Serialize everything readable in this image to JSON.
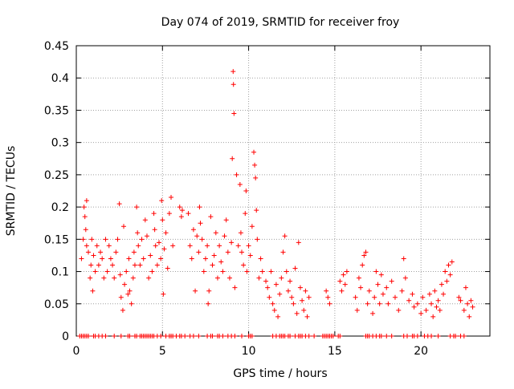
{
  "chart_data": {
    "type": "scatter",
    "title": "Day 074 of 2019, SRMTID for receiver froy",
    "xlabel": "GPS time / hours",
    "ylabel": "SRMTID / TECUs",
    "xlim": [
      0,
      24
    ],
    "ylim": [
      0,
      0.45
    ],
    "x_ticks": [
      0,
      5,
      10,
      15,
      20
    ],
    "x_tick_labels": [
      "0",
      "5",
      "10",
      "15",
      "20"
    ],
    "y_ticks": [
      0,
      0.05,
      0.1,
      0.15,
      0.2,
      0.25,
      0.3,
      0.35,
      0.4,
      0.45
    ],
    "y_tick_labels": [
      "0",
      "0.05",
      "0.1",
      "0.15",
      "0.2",
      "0.25",
      "0.3",
      "0.35",
      "0.4",
      "0.45"
    ],
    "grid": true,
    "marker": "+",
    "color": "#ff0000",
    "series": [
      {
        "name": "SRMTID",
        "points": [
          [
            0.3,
            0.12
          ],
          [
            0.4,
            0.15
          ],
          [
            0.45,
            0.2
          ],
          [
            0.5,
            0.185
          ],
          [
            0.55,
            0.165
          ],
          [
            0.6,
            0.21
          ],
          [
            0.6,
            0.14
          ],
          [
            0.7,
            0.13
          ],
          [
            0.8,
            0.09
          ],
          [
            0.85,
            0.11
          ],
          [
            0.9,
            0.15
          ],
          [
            0.95,
            0.07
          ],
          [
            1.0,
            0.125
          ],
          [
            1.1,
            0.1
          ],
          [
            1.2,
            0.14
          ],
          [
            1.3,
            0.11
          ],
          [
            1.4,
            0.13
          ],
          [
            1.5,
            0.12
          ],
          [
            1.6,
            0.09
          ],
          [
            1.7,
            0.15
          ],
          [
            1.8,
            0.1
          ],
          [
            1.9,
            0.14
          ],
          [
            2.0,
            0.12
          ],
          [
            2.1,
            0.11
          ],
          [
            2.2,
            0.09
          ],
          [
            2.3,
            0.13
          ],
          [
            2.4,
            0.15
          ],
          [
            2.5,
            0.205
          ],
          [
            2.55,
            0.095
          ],
          [
            2.6,
            0.06
          ],
          [
            2.7,
            0.04
          ],
          [
            2.75,
            0.17
          ],
          [
            2.8,
            0.08
          ],
          [
            2.9,
            0.1
          ],
          [
            3.0,
            0.065
          ],
          [
            3.05,
            0.12
          ],
          [
            3.1,
            0.07
          ],
          [
            3.2,
            0.05
          ],
          [
            3.3,
            0.09
          ],
          [
            3.35,
            0.13
          ],
          [
            3.4,
            0.11
          ],
          [
            3.5,
            0.2
          ],
          [
            3.55,
            0.16
          ],
          [
            3.6,
            0.14
          ],
          [
            3.7,
            0.11
          ],
          [
            3.8,
            0.15
          ],
          [
            3.9,
            0.12
          ],
          [
            4.0,
            0.18
          ],
          [
            4.1,
            0.155
          ],
          [
            4.2,
            0.09
          ],
          [
            4.3,
            0.125
          ],
          [
            4.4,
            0.1
          ],
          [
            4.5,
            0.19
          ],
          [
            4.55,
            0.165
          ],
          [
            4.6,
            0.14
          ],
          [
            4.7,
            0.11
          ],
          [
            4.8,
            0.145
          ],
          [
            4.9,
            0.12
          ],
          [
            4.95,
            0.21
          ],
          [
            5.0,
            0.18
          ],
          [
            5.05,
            0.065
          ],
          [
            5.1,
            0.135
          ],
          [
            5.2,
            0.16
          ],
          [
            5.3,
            0.105
          ],
          [
            5.4,
            0.19
          ],
          [
            5.5,
            0.215
          ],
          [
            5.6,
            0.14
          ],
          [
            6.0,
            0.2
          ],
          [
            6.1,
            0.185
          ],
          [
            6.15,
            0.195
          ],
          [
            6.5,
            0.19
          ],
          [
            6.6,
            0.14
          ],
          [
            6.7,
            0.12
          ],
          [
            6.8,
            0.165
          ],
          [
            6.9,
            0.07
          ],
          [
            7.0,
            0.155
          ],
          [
            7.1,
            0.13
          ],
          [
            7.15,
            0.2
          ],
          [
            7.2,
            0.175
          ],
          [
            7.3,
            0.15
          ],
          [
            7.4,
            0.1
          ],
          [
            7.5,
            0.12
          ],
          [
            7.6,
            0.14
          ],
          [
            7.65,
            0.05
          ],
          [
            7.7,
            0.07
          ],
          [
            7.8,
            0.185
          ],
          [
            7.9,
            0.11
          ],
          [
            8.0,
            0.125
          ],
          [
            8.1,
            0.16
          ],
          [
            8.2,
            0.09
          ],
          [
            8.3,
            0.14
          ],
          [
            8.4,
            0.115
          ],
          [
            8.5,
            0.1
          ],
          [
            8.6,
            0.155
          ],
          [
            8.7,
            0.18
          ],
          [
            8.8,
            0.13
          ],
          [
            8.9,
            0.09
          ],
          [
            9.0,
            0.145
          ],
          [
            9.05,
            0.275
          ],
          [
            9.1,
            0.41
          ],
          [
            9.12,
            0.39
          ],
          [
            9.15,
            0.345
          ],
          [
            9.2,
            0.075
          ],
          [
            9.3,
            0.25
          ],
          [
            9.4,
            0.14
          ],
          [
            9.5,
            0.235
          ],
          [
            9.55,
            0.16
          ],
          [
            9.6,
            0.13
          ],
          [
            9.7,
            0.11
          ],
          [
            9.8,
            0.19
          ],
          [
            9.85,
            0.225
          ],
          [
            9.9,
            0.1
          ],
          [
            10.0,
            0.14
          ],
          [
            10.1,
            0.125
          ],
          [
            10.2,
            0.17
          ],
          [
            10.3,
            0.285
          ],
          [
            10.35,
            0.265
          ],
          [
            10.4,
            0.245
          ],
          [
            10.45,
            0.195
          ],
          [
            10.5,
            0.15
          ],
          [
            10.6,
            0.09
          ],
          [
            10.7,
            0.12
          ],
          [
            10.8,
            0.1
          ],
          [
            11.0,
            0.085
          ],
          [
            11.1,
            0.075
          ],
          [
            11.2,
            0.06
          ],
          [
            11.3,
            0.1
          ],
          [
            11.4,
            0.05
          ],
          [
            11.5,
            0.04
          ],
          [
            11.6,
            0.08
          ],
          [
            11.7,
            0.03
          ],
          [
            11.8,
            0.065
          ],
          [
            11.9,
            0.09
          ],
          [
            12.0,
            0.13
          ],
          [
            12.1,
            0.155
          ],
          [
            12.2,
            0.1
          ],
          [
            12.3,
            0.07
          ],
          [
            12.4,
            0.085
          ],
          [
            12.5,
            0.06
          ],
          [
            12.6,
            0.05
          ],
          [
            12.7,
            0.105
          ],
          [
            12.8,
            0.035
          ],
          [
            12.9,
            0.145
          ],
          [
            13.0,
            0.075
          ],
          [
            13.1,
            0.055
          ],
          [
            13.2,
            0.04
          ],
          [
            13.3,
            0.07
          ],
          [
            13.4,
            0.03
          ],
          [
            13.5,
            0.06
          ],
          [
            14.5,
            0.07
          ],
          [
            14.6,
            0.06
          ],
          [
            14.7,
            0.05
          ],
          [
            15.3,
            0.085
          ],
          [
            15.4,
            0.07
          ],
          [
            15.5,
            0.095
          ],
          [
            15.6,
            0.08
          ],
          [
            15.7,
            0.1
          ],
          [
            16.2,
            0.06
          ],
          [
            16.3,
            0.04
          ],
          [
            16.4,
            0.09
          ],
          [
            16.5,
            0.075
          ],
          [
            16.6,
            0.11
          ],
          [
            16.7,
            0.125
          ],
          [
            16.8,
            0.13
          ],
          [
            16.9,
            0.05
          ],
          [
            17.0,
            0.07
          ],
          [
            17.2,
            0.035
          ],
          [
            17.3,
            0.06
          ],
          [
            17.4,
            0.1
          ],
          [
            17.5,
            0.08
          ],
          [
            17.6,
            0.05
          ],
          [
            17.7,
            0.095
          ],
          [
            17.8,
            0.065
          ],
          [
            18.0,
            0.075
          ],
          [
            18.1,
            0.05
          ],
          [
            18.3,
            0.085
          ],
          [
            18.5,
            0.06
          ],
          [
            18.7,
            0.04
          ],
          [
            18.9,
            0.07
          ],
          [
            19.0,
            0.12
          ],
          [
            19.1,
            0.09
          ],
          [
            19.3,
            0.055
          ],
          [
            19.5,
            0.065
          ],
          [
            19.6,
            0.045
          ],
          [
            19.8,
            0.05
          ],
          [
            20.0,
            0.035
          ],
          [
            20.1,
            0.06
          ],
          [
            20.3,
            0.04
          ],
          [
            20.5,
            0.065
          ],
          [
            20.6,
            0.05
          ],
          [
            20.7,
            0.03
          ],
          [
            20.8,
            0.07
          ],
          [
            20.9,
            0.045
          ],
          [
            21.0,
            0.055
          ],
          [
            21.1,
            0.04
          ],
          [
            21.2,
            0.08
          ],
          [
            21.3,
            0.065
          ],
          [
            21.4,
            0.1
          ],
          [
            21.5,
            0.085
          ],
          [
            21.6,
            0.11
          ],
          [
            21.7,
            0.095
          ],
          [
            21.8,
            0.115
          ],
          [
            22.2,
            0.06
          ],
          [
            22.3,
            0.055
          ],
          [
            22.5,
            0.04
          ],
          [
            22.6,
            0.075
          ],
          [
            22.7,
            0.05
          ],
          [
            22.8,
            0.03
          ],
          [
            22.9,
            0.055
          ],
          [
            23.0,
            0.045
          ]
        ],
        "zero_x": [
          0.2,
          0.3,
          0.4,
          0.5,
          0.6,
          0.7,
          1.0,
          1.1,
          1.3,
          1.5,
          1.7,
          2.2,
          2.6,
          3.0,
          3.1,
          3.4,
          3.5,
          3.7,
          3.8,
          3.9,
          4.0,
          4.1,
          4.2,
          4.3,
          4.4,
          4.5,
          4.7,
          4.9,
          5.2,
          5.4,
          5.5,
          5.6,
          5.8,
          6.0,
          6.1,
          6.3,
          6.6,
          6.8,
          7.1,
          7.6,
          7.8,
          7.9,
          8.2,
          8.3,
          8.5,
          8.8,
          9.0,
          9.2,
          9.6,
          10.0,
          10.1,
          10.2,
          11.4,
          11.6,
          11.8,
          11.9,
          12.0,
          12.1,
          12.3,
          12.4,
          12.7,
          12.9,
          13.0,
          13.1,
          13.3,
          13.5,
          13.8,
          14.3,
          14.4,
          14.5,
          14.6,
          14.7,
          14.8,
          14.9,
          15.2,
          15.3,
          16.8,
          16.9,
          17.0,
          17.2,
          17.4,
          17.6,
          17.7,
          18.0,
          18.3,
          19.0,
          19.2,
          19.5,
          19.6,
          19.8,
          20.2,
          20.4,
          20.6,
          21.0,
          21.7,
          21.9,
          22.0,
          22.3,
          22.5
        ]
      }
    ]
  }
}
